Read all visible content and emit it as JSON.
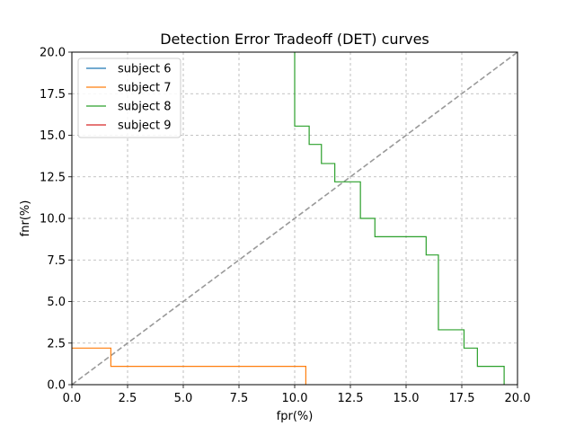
{
  "chart_data": {
    "type": "line",
    "title": "Detection Error Tradeoff (DET) curves",
    "xlabel": "fpr(%)",
    "ylabel": "fnr(%)",
    "xlim": [
      0,
      20
    ],
    "ylim": [
      0,
      20
    ],
    "xticks": [
      "0.0",
      "2.5",
      "5.0",
      "7.5",
      "10.0",
      "12.5",
      "15.0",
      "17.5",
      "20.0"
    ],
    "yticks": [
      "0.0",
      "2.5",
      "5.0",
      "7.5",
      "10.0",
      "12.5",
      "15.0",
      "17.5",
      "20.0"
    ],
    "grid": true,
    "legend_position": "upper-left",
    "diagonal": {
      "color": "#999999",
      "style": "dashed",
      "points": [
        [
          0,
          0
        ],
        [
          20,
          20
        ]
      ]
    },
    "series": [
      {
        "name": "subject 6",
        "color": "#1f77b4",
        "points": []
      },
      {
        "name": "subject 7",
        "color": "#ff7f0e",
        "points": [
          [
            0,
            2.2
          ],
          [
            1.75,
            2.2
          ],
          [
            1.75,
            1.1
          ],
          [
            10.5,
            1.1
          ],
          [
            10.5,
            0
          ]
        ]
      },
      {
        "name": "subject 8",
        "color": "#2ca02c",
        "points": [
          [
            10.0,
            20.5
          ],
          [
            10.0,
            15.55
          ],
          [
            10.65,
            15.55
          ],
          [
            10.65,
            14.45
          ],
          [
            11.2,
            14.45
          ],
          [
            11.2,
            13.3
          ],
          [
            11.8,
            13.3
          ],
          [
            11.8,
            12.2
          ],
          [
            12.95,
            12.2
          ],
          [
            12.95,
            10.0
          ],
          [
            13.6,
            10.0
          ],
          [
            13.6,
            8.9
          ],
          [
            15.9,
            8.9
          ],
          [
            15.9,
            7.8
          ],
          [
            16.45,
            7.8
          ],
          [
            16.45,
            3.3
          ],
          [
            17.6,
            3.3
          ],
          [
            17.6,
            2.2
          ],
          [
            18.2,
            2.2
          ],
          [
            18.2,
            1.1
          ],
          [
            19.4,
            1.1
          ],
          [
            19.4,
            0
          ]
        ]
      },
      {
        "name": "subject 9",
        "color": "#d62728",
        "points": []
      }
    ]
  }
}
